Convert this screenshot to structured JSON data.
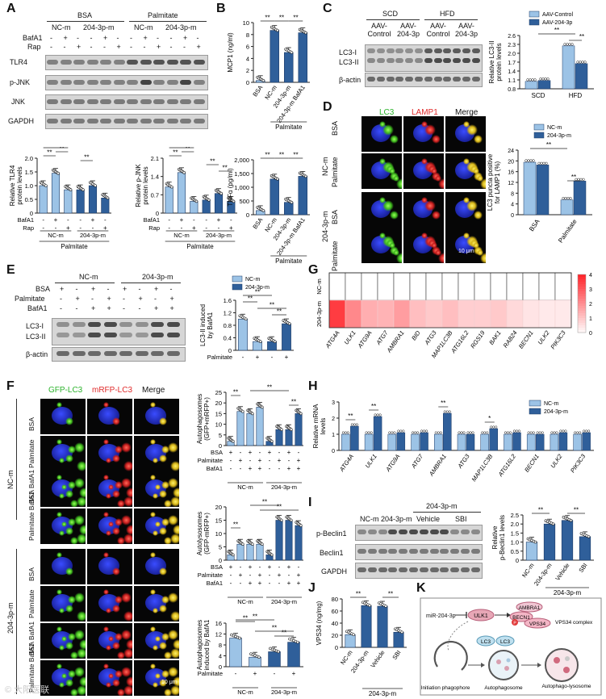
{
  "panels": {
    "A": {
      "label": "A",
      "groups": [
        "BSA",
        "Palmitate"
      ],
      "subgroups": [
        "NC-m",
        "204-3p-m",
        "NC-m",
        "204-3p-m"
      ],
      "row_labels": [
        "BafA1",
        "Rap"
      ],
      "row_signs": [
        [
          "-",
          "+",
          "-",
          "-",
          "+",
          "-",
          "-",
          "+",
          "-",
          "-",
          "+",
          "-"
        ],
        [
          "-",
          "-",
          "+",
          "-",
          "-",
          "+",
          "-",
          "-",
          "+",
          "-",
          "-",
          "+"
        ]
      ],
      "blots": [
        "TLR4",
        "p-JNK",
        "JNK",
        "GAPDH"
      ],
      "chart_tlr4": {
        "type": "bar",
        "ylabel": "Relative TLR4 protein levels",
        "yticks": [
          "0",
          "0.5",
          "1.0",
          "1.5",
          "2.0"
        ],
        "ylim": [
          0,
          2.0
        ],
        "values": [
          1.0,
          1.45,
          0.85,
          0.85,
          1.0,
          0.55
        ],
        "sig": [
          "**",
          "**",
          "**",
          "**"
        ],
        "signs1": [
          "-",
          "+",
          "-",
          "-",
          "+",
          "-"
        ],
        "signs2": [
          "-",
          "-",
          "+",
          "-",
          "-",
          "+"
        ],
        "group_labels": [
          "NC-m",
          "204-3p-m"
        ],
        "footer": "Palmitate",
        "row_labels": [
          "BafA1",
          "Rap"
        ]
      },
      "chart_pjnk": {
        "type": "bar",
        "ylabel": "Relative p-JNK protein levels",
        "yticks": [
          "0",
          "0.7",
          "1.4",
          "2.1"
        ],
        "ylim": [
          0,
          2.1
        ],
        "values": [
          1.0,
          1.55,
          0.45,
          0.5,
          0.75,
          0.45
        ],
        "sig": [
          "**",
          "**",
          "**",
          "**",
          "**"
        ],
        "signs1": [
          "-",
          "+",
          "-",
          "-",
          "+",
          "-"
        ],
        "signs2": [
          "-",
          "-",
          "+",
          "-",
          "-",
          "+"
        ],
        "group_labels": [
          "NC-m",
          "204-3p-m"
        ],
        "footer": "Palmitate",
        "row_labels": [
          "BafA1",
          "Rap"
        ]
      }
    },
    "B": {
      "label": "B",
      "chart_mcp1": {
        "type": "bar",
        "ylabel": "MCP1 (ng/ml)",
        "yticks": [
          "0",
          "2",
          "4",
          "6",
          "8",
          "10"
        ],
        "ylim": [
          0,
          10
        ],
        "categories": [
          "BSA",
          "NC-m",
          "204-3p-m",
          "204-3p-m BafA1"
        ],
        "values": [
          0.3,
          8.7,
          5.0,
          8.3
        ],
        "sig": [
          "**",
          "**",
          "**"
        ],
        "footer": "Palmitate"
      },
      "chart_tnfa": {
        "type": "bar",
        "ylabel": "TNFα (pg/ml)",
        "yticks": [
          "0",
          "500",
          "1,000",
          "1,500",
          "2,000"
        ],
        "ylim": [
          0,
          2000
        ],
        "categories": [
          "BSA",
          "NC-m",
          "204-3p-m",
          "204-3p-m BafA1"
        ],
        "values": [
          150,
          1300,
          450,
          1400
        ],
        "sig": [
          "**",
          "**",
          "**"
        ],
        "footer": "Palmitate"
      }
    },
    "C": {
      "label": "C",
      "groups": [
        "SCD",
        "HFD"
      ],
      "lanes": [
        "AAV-Control",
        "AAV-204-3p",
        "AAV-Control",
        "AAV-204-3p"
      ],
      "blots": [
        "LC3-I",
        "LC3-II",
        "β-actin"
      ],
      "chart": {
        "type": "bar",
        "ylabel": "Relative LC3-II protein levels",
        "yticks": [
          "0.8",
          "1.1",
          "1.4",
          "1.7",
          "2.0",
          "2.3",
          "2.6"
        ],
        "ylim": [
          0.8,
          2.6
        ],
        "categories": [
          "SCD",
          "HFD"
        ],
        "series": [
          {
            "name": "AAV-Control",
            "values": [
              1.05,
              2.25
            ]
          },
          {
            "name": "AAV-204-3p",
            "values": [
              1.08,
              1.65
            ]
          }
        ],
        "sig": [
          "**",
          "**"
        ]
      }
    },
    "D": {
      "label": "D",
      "channels": [
        "LC3",
        "LAMP1",
        "Merge"
      ],
      "rows": [
        "BSA",
        "Palmitate",
        "BSA",
        "Palmitate"
      ],
      "groups": [
        "NC-m",
        "204-3p-m"
      ],
      "scale": "10 μm",
      "chart": {
        "type": "bar",
        "ylabel": "LC3 puncta positive for LAMP1 (%)",
        "yticks": [
          "0",
          "4",
          "8",
          "12",
          "16",
          "20",
          "24"
        ],
        "ylim": [
          0,
          24
        ],
        "categories": [
          "BSA",
          "Palmitate"
        ],
        "series": [
          {
            "name": "NC-m",
            "values": [
              19.5,
              5.5
            ]
          },
          {
            "name": "204-3p-m",
            "values": [
              18.5,
              12.5
            ]
          }
        ],
        "sig": [
          "**",
          "**"
        ]
      }
    },
    "E": {
      "label": "E",
      "groups": [
        "NC-m",
        "204-3p-m"
      ],
      "row_labels": [
        "BSA",
        "Palmitate",
        "BafA1"
      ],
      "row_signs": [
        [
          "+",
          "-",
          "+",
          "-",
          "+",
          "-",
          "+",
          "-"
        ],
        [
          "-",
          "+",
          "-",
          "+",
          "-",
          "+",
          "-",
          "+"
        ],
        [
          "-",
          "-",
          "+",
          "+",
          "-",
          "-",
          "+",
          "+"
        ]
      ],
      "blots": [
        "LC3-I",
        "LC3-II",
        "β-actin"
      ],
      "chart": {
        "type": "bar",
        "ylabel": "LC3-II induced by BafA1",
        "yticks": [
          "0",
          "0.4",
          "0.8",
          "1.2",
          "1.6"
        ],
        "ylim": [
          0,
          1.6
        ],
        "series": [
          {
            "name": "NC-m",
            "values": [
              1.0,
              0.28
            ]
          },
          {
            "name": "204-3p-m",
            "values": [
              0.28,
              0.85
            ]
          }
        ],
        "signs": [
          "-",
          "+",
          "-",
          "+"
        ],
        "row_label": "Palmitate",
        "sig": [
          "**",
          "**",
          "**",
          "**"
        ]
      }
    },
    "F": {
      "label": "F",
      "channels": [
        "GFP-LC3",
        "mRFP-LC3",
        "Merge"
      ],
      "rows": [
        "BSA",
        "Palmitate",
        "BSA BafA1",
        "Palmitate BafA1",
        "BSA",
        "Palmitate",
        "BSA BafA1",
        "Palmitate BafA1"
      ],
      "groups": [
        "NC-m",
        "204-3p-m"
      ],
      "scale": "10 μm",
      "chart_ap": {
        "type": "bar",
        "ylabel": "Autophagosomes (GFP+mRFP+)",
        "yticks": [
          "0",
          "5",
          "10",
          "15",
          "20",
          "25"
        ],
        "ylim": [
          0,
          25
        ],
        "values": [
          2,
          16,
          15,
          18,
          2,
          7.5,
          7.5,
          15
        ],
        "row_labels": [
          "BSA",
          "Palmitate",
          "BafA1"
        ],
        "signs": [
          [
            "+",
            "-",
            "+",
            "-",
            "+",
            "-",
            "+",
            "-"
          ],
          [
            "-",
            "+",
            "-",
            "+",
            "-",
            "+",
            "-",
            "+"
          ],
          [
            "-",
            "-",
            "+",
            "+",
            "-",
            "-",
            "+",
            "+"
          ]
        ],
        "group_labels": [
          "NC-m",
          "204-3p-m"
        ],
        "sig": [
          "**",
          "**",
          "**"
        ]
      },
      "chart_al": {
        "type": "bar",
        "ylabel": "Autolysosomes (GFP-mRFP+)",
        "yticks": [
          "0",
          "5",
          "10",
          "15",
          "20"
        ],
        "ylim": [
          0,
          20
        ],
        "values": [
          2,
          6,
          6,
          6,
          2,
          15,
          15,
          13
        ],
        "row_labels": [
          "BSA",
          "Palmitate",
          "BafA1"
        ],
        "signs": [
          [
            "+",
            "-",
            "+",
            "-",
            "+",
            "-",
            "+",
            "-"
          ],
          [
            "-",
            "+",
            "-",
            "+",
            "-",
            "+",
            "-",
            "+"
          ],
          [
            "-",
            "-",
            "+",
            "+",
            "-",
            "-",
            "+",
            "+"
          ]
        ],
        "group_labels": [
          "NC-m",
          "204-3p-m"
        ],
        "sig": [
          "**",
          "**",
          "**"
        ]
      },
      "chart_ind": {
        "type": "bar",
        "ylabel": "Autophagosomes induced by BafA1",
        "yticks": [
          "0",
          "4",
          "8",
          "12",
          "16"
        ],
        "ylim": [
          0,
          16
        ],
        "values": [
          10.5,
          3.5,
          5.5,
          9
        ],
        "row_label": "Palmitate",
        "signs": [
          "-",
          "+",
          "-",
          "+"
        ],
        "group_labels": [
          "NC-m",
          "204-3p-m"
        ],
        "sig": [
          "**",
          "**",
          "**",
          "**"
        ]
      }
    },
    "G": {
      "label": "G",
      "chart": {
        "type": "heatmap",
        "rows": [
          "NC-m",
          "204-3p-m"
        ],
        "columns": [
          "ATG4A",
          "ULK1",
          "ATG9A",
          "ATG7",
          "AMBRA1",
          "BID",
          "ATG3",
          "MAP1LC3B",
          "ATG16L2",
          "RGS19",
          "BAK1",
          "RAB24",
          "BECN1",
          "ULK2",
          "PIK3C3"
        ],
        "values": [
          [
            0,
            0,
            0,
            0,
            0,
            0,
            0,
            0,
            0,
            0,
            0,
            0,
            0,
            0,
            0
          ],
          [
            3.6,
            2.2,
            1.5,
            1.4,
            1.8,
            1.2,
            1.0,
            1.2,
            0.9,
            0.9,
            1.0,
            0.7,
            0.5,
            0.4,
            0.4
          ]
        ],
        "scale_ticks": [
          "4",
          "3",
          "2",
          "1",
          "0"
        ],
        "scale_range": [
          0,
          4
        ]
      }
    },
    "H": {
      "label": "H",
      "chart": {
        "type": "bar",
        "ylabel": "Relative mRNA levels",
        "yticks": [
          "0",
          "1",
          "2",
          "3"
        ],
        "ylim": [
          0,
          3
        ],
        "categories": [
          "ATG4A",
          "ULK1",
          "ATG9A",
          "ATG7",
          "AMBRA1",
          "ATG3",
          "MAP1LC3B",
          "ATG16L2",
          "BECN1",
          "ULK2",
          "PIK3C3"
        ],
        "series": [
          {
            "name": "NC-m",
            "values": [
              1.0,
              1.0,
              1.0,
              1.0,
              1.0,
              1.0,
              1.0,
              1.0,
              1.0,
              1.0,
              1.0
            ]
          },
          {
            "name": "204-3p-m",
            "values": [
              1.5,
              2.1,
              1.1,
              1.1,
              2.3,
              1.0,
              1.35,
              1.1,
              1.0,
              1.1,
              1.1
            ]
          }
        ],
        "sig_labels": [
          "**",
          "**",
          "**",
          "*"
        ]
      }
    },
    "I": {
      "label": "I",
      "group_top": "204-3p-m",
      "lanes": [
        "NC-m",
        "204-3p-m",
        "Vehicle",
        "SBI"
      ],
      "blots": [
        "p-Beclin1",
        "Beclin1",
        "GAPDH"
      ],
      "chart": {
        "type": "bar",
        "ylabel": "Relative p-Beclin1 levels",
        "yticks": [
          "0",
          "0.5",
          "1.0",
          "1.5",
          "2.0",
          "2.5"
        ],
        "ylim": [
          0,
          2.5
        ],
        "categories": [
          "NC-m",
          "204-3p-m",
          "Vehicle",
          "SBI"
        ],
        "values": [
          1.0,
          2.0,
          2.2,
          1.3
        ],
        "sig": [
          "**",
          "**"
        ],
        "footer": "204-3p-m"
      }
    },
    "J": {
      "label": "J",
      "chart": {
        "type": "bar",
        "ylabel": "VPS34 (ng/mg)",
        "yticks": [
          "0",
          "20",
          "40",
          "60",
          "80"
        ],
        "ylim": [
          0,
          80
        ],
        "categories": [
          "NC-m",
          "204-3p-m",
          "Vehicle",
          "SBI"
        ],
        "values": [
          21,
          69,
          68,
          25
        ],
        "sig": [
          "**",
          "**"
        ],
        "footer": "204-3p-m"
      }
    },
    "K": {
      "label": "K",
      "mirna": "miR-204-3p",
      "nodes": [
        "ULK1",
        "AMBRA1",
        "BECN1",
        "VPS34",
        "VPS34 complex",
        "LC3",
        "LC3"
      ],
      "phos": "P",
      "stages": [
        "Initiation phagophore",
        "Autophagosome",
        "Autophago-lysosome"
      ]
    }
  },
  "colors": {
    "light_bar": "#9cc3e6",
    "dark_bar": "#2f5f9a",
    "mid_bar": "#5b8fc8",
    "heat_hi": "#e8262c"
  },
  "watermark": "© 大阳医联"
}
